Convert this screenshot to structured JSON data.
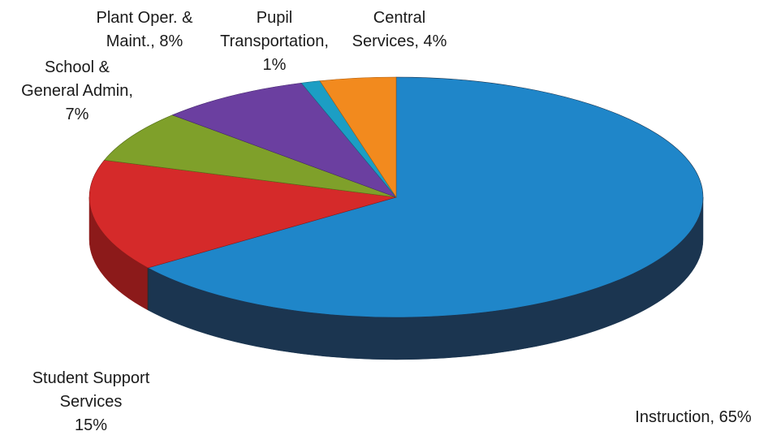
{
  "chart_data": {
    "type": "pie",
    "style": "3d",
    "start": "12 o'clock",
    "direction": "clockwise",
    "legend": "none",
    "title": "",
    "slices": [
      {
        "name": "Instruction",
        "value": 65,
        "label_lines": [
          "Instruction, 65%"
        ],
        "color": "#1f86c9",
        "side_color": "#1b3550"
      },
      {
        "name": "Student Support Services",
        "value": 15,
        "label_lines": [
          "Student Support",
          "Services",
          "15%"
        ],
        "color": "#d52a2a",
        "side_color": "#8c1a1a"
      },
      {
        "name": "School & General Admin",
        "value": 7,
        "label_lines": [
          "School &",
          "General Admin,",
          "7%"
        ],
        "color": "#7fa02a",
        "side_color": "#526d18"
      },
      {
        "name": "Plant Oper. & Maint.",
        "value": 8,
        "label_lines": [
          "Plant Oper. &",
          "Maint., 8%"
        ],
        "color": "#6b3fa0",
        "side_color": "#43266b"
      },
      {
        "name": "Pupil Transportation",
        "value": 1,
        "label_lines": [
          "Pupil",
          "Transportation,",
          "1%"
        ],
        "color": "#1c9ec4",
        "side_color": "#136b85"
      },
      {
        "name": "Central Services",
        "value": 4,
        "label_lines": [
          "Central",
          "Services, 4%"
        ],
        "color": "#f28a1e",
        "side_color": "#a95a0e"
      }
    ]
  }
}
